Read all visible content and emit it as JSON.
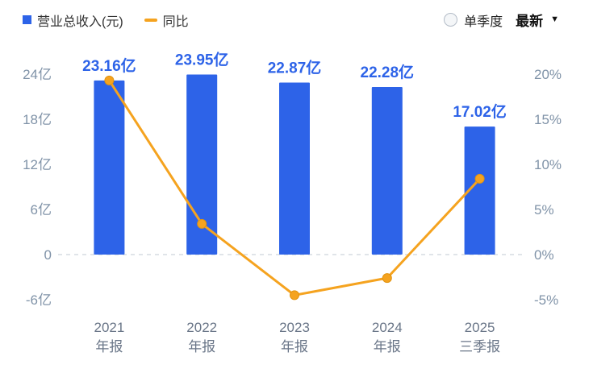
{
  "legend": {
    "revenue_label": "营业总收入(元)",
    "yoy_label": "同比"
  },
  "controls": {
    "single_quarter_label": "单季度",
    "latest_label": "最新"
  },
  "colors": {
    "bar": "#2d63e8",
    "line": "#f5a31f",
    "value_text": "#2d63e8",
    "axis_text": "#8093a8",
    "x_label_text": "#6a7688",
    "grid": "#d5dbe2"
  },
  "chart_data": {
    "type": "bar",
    "title": "营业总收入(元) / 同比",
    "categories": [
      {
        "line1": "2021",
        "line2": "年报"
      },
      {
        "line1": "2022",
        "line2": "年报"
      },
      {
        "line1": "2023",
        "line2": "年报"
      },
      {
        "line1": "2024",
        "line2": "年报"
      },
      {
        "line1": "2025",
        "line2": "三季报"
      }
    ],
    "series": [
      {
        "name": "营业总收入(元)",
        "type": "bar",
        "unit": "亿",
        "values": [
          23.16,
          23.95,
          22.87,
          22.28,
          17.02
        ],
        "labels": [
          "23.16亿",
          "23.95亿",
          "22.87亿",
          "22.28亿",
          "17.02亿"
        ]
      },
      {
        "name": "同比",
        "type": "line",
        "unit": "%",
        "values": [
          19.3,
          3.4,
          -4.5,
          -2.6,
          8.4
        ]
      }
    ],
    "left_axis": {
      "ticks": [
        "24亿",
        "18亿",
        "12亿",
        "6亿",
        "0",
        "-6亿"
      ],
      "values": [
        24,
        18,
        12,
        6,
        0,
        -6
      ],
      "range": [
        -6,
        24
      ]
    },
    "right_axis": {
      "ticks": [
        "20%",
        "15%",
        "10%",
        "5%",
        "0%",
        "-5%"
      ],
      "values": [
        20,
        15,
        10,
        5,
        0,
        -5
      ],
      "range": [
        -5,
        20
      ]
    },
    "grid": "zero-line-dashed-only",
    "legend_position": "top-left"
  }
}
